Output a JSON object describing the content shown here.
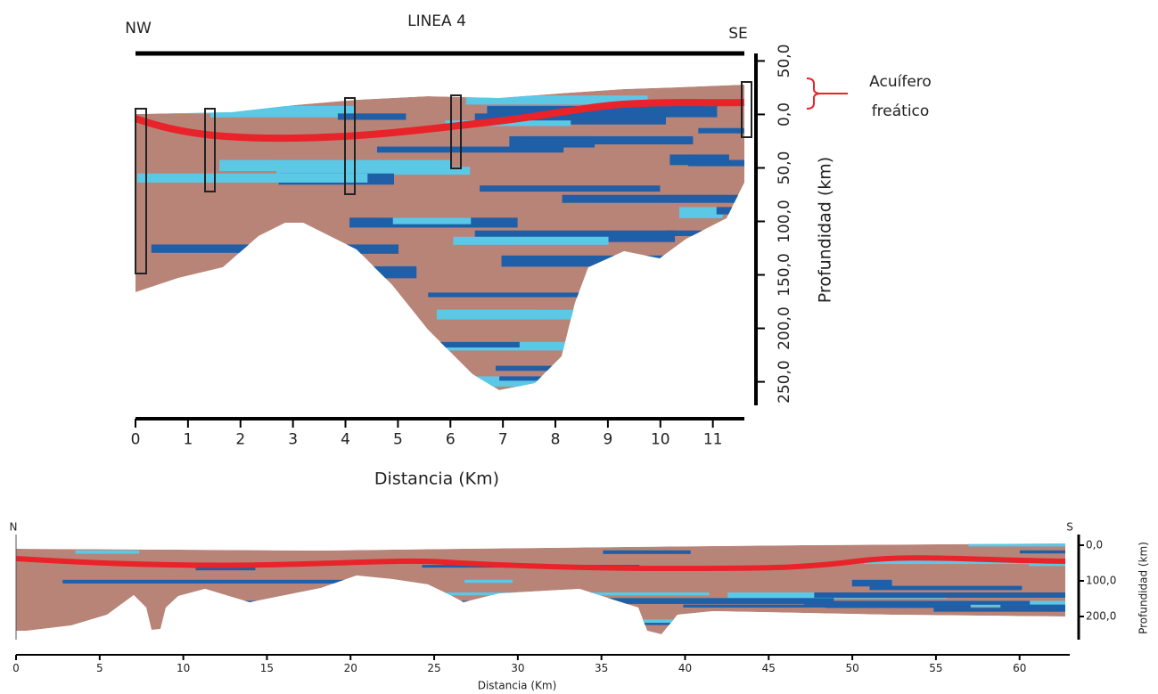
{
  "chart_data": [
    {
      "type": "section",
      "title": "LINEA 4",
      "left_label": "NW",
      "right_label": "SE",
      "xlabel": "Distancia (Km)",
      "ylabel": "Profundidad (km)",
      "annotation": [
        "Acuífero",
        "freático"
      ],
      "xlim": [
        0,
        11.6
      ],
      "xticks": [
        0,
        1,
        2,
        3,
        4,
        5,
        6,
        7,
        8,
        9,
        10,
        11
      ],
      "ylim": [
        -57,
        272
      ],
      "yticks": [
        {
          "value": -50,
          "label": "50,0"
        },
        {
          "value": 0,
          "label": "0,0"
        },
        {
          "value": 50,
          "label": "50,0"
        },
        {
          "value": 100,
          "label": "100,0"
        },
        {
          "value": 150,
          "label": "150,0"
        },
        {
          "value": 200,
          "label": "200,0"
        },
        {
          "value": 250,
          "label": "250,0"
        }
      ]
    },
    {
      "type": "section",
      "left_label": "N",
      "right_label": "S",
      "xlabel": "Distancia (Km)",
      "ylabel": "Profundidad (km)",
      "xlim": [
        0,
        63
      ],
      "xticks": [
        0,
        5,
        10,
        15,
        20,
        25,
        30,
        35,
        40,
        45,
        50,
        55,
        60
      ],
      "ylim": [
        -30,
        265
      ],
      "yticks": [
        {
          "value": 0,
          "label": "0,0"
        },
        {
          "value": 100,
          "label": "100,0"
        },
        {
          "value": 200,
          "label": "200,0"
        }
      ]
    }
  ]
}
